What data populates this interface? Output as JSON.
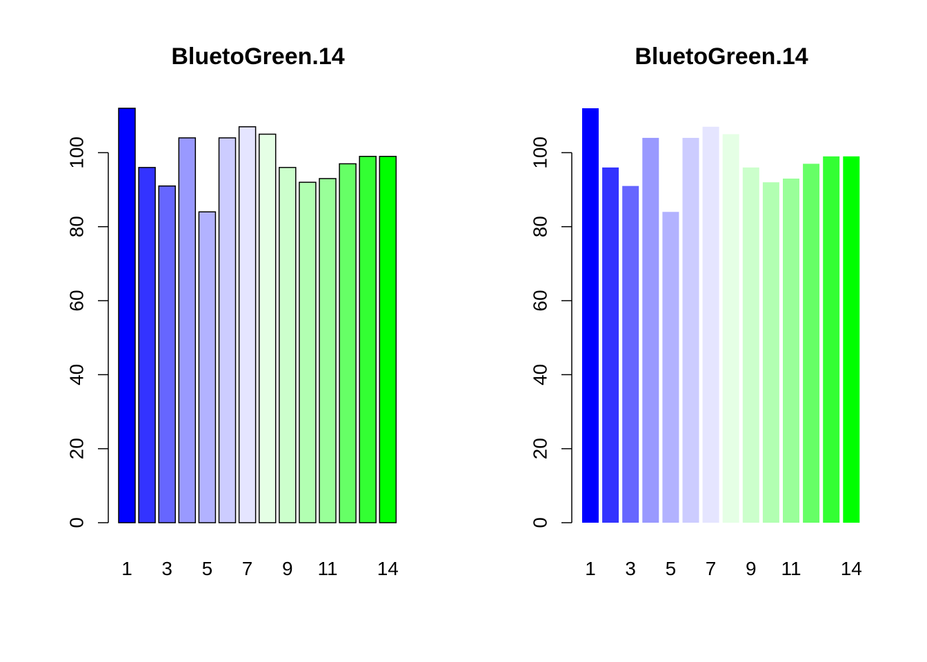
{
  "chart_data": [
    {
      "type": "bar",
      "title": "BluetoGreen.14",
      "xlabel": "",
      "ylabel": "",
      "categories": [
        "1",
        "2",
        "3",
        "4",
        "5",
        "6",
        "7",
        "8",
        "9",
        "10",
        "11",
        "12",
        "13",
        "14"
      ],
      "x_tick_labels": [
        "1",
        "3",
        "5",
        "7",
        "9",
        "11",
        "14"
      ],
      "x_tick_positions": [
        1,
        3,
        5,
        7,
        9,
        11,
        14
      ],
      "values": [
        112,
        96,
        91,
        104,
        84,
        104,
        107,
        105,
        96,
        92,
        93,
        97,
        99,
        99
      ],
      "colors": [
        "#0000FF",
        "#3333FF",
        "#6666FF",
        "#9999FF",
        "#B2B2FF",
        "#CCCCFF",
        "#E5E5FF",
        "#E5FFE5",
        "#CCFFCC",
        "#B2FFB2",
        "#99FF99",
        "#66FF66",
        "#33FF33",
        "#00FF00"
      ],
      "bar_border": true,
      "ylim": [
        0,
        112
      ],
      "y_ticks": [
        0,
        20,
        40,
        60,
        80,
        100
      ],
      "y_tick_labels": [
        "0",
        "20",
        "40",
        "60",
        "80",
        "100"
      ],
      "grid": false
    },
    {
      "type": "bar",
      "title": "BluetoGreen.14",
      "xlabel": "",
      "ylabel": "",
      "categories": [
        "1",
        "2",
        "3",
        "4",
        "5",
        "6",
        "7",
        "8",
        "9",
        "10",
        "11",
        "12",
        "13",
        "14"
      ],
      "x_tick_labels": [
        "1",
        "3",
        "5",
        "7",
        "9",
        "11",
        "14"
      ],
      "x_tick_positions": [
        1,
        3,
        5,
        7,
        9,
        11,
        14
      ],
      "values": [
        112,
        96,
        91,
        104,
        84,
        104,
        107,
        105,
        96,
        92,
        93,
        97,
        99,
        99
      ],
      "colors": [
        "#0000FF",
        "#3333FF",
        "#6666FF",
        "#9999FF",
        "#B2B2FF",
        "#CCCCFF",
        "#E5E5FF",
        "#E5FFE5",
        "#CCFFCC",
        "#B2FFB2",
        "#99FF99",
        "#66FF66",
        "#33FF33",
        "#00FF00"
      ],
      "bar_border": false,
      "ylim": [
        0,
        112
      ],
      "y_ticks": [
        0,
        20,
        40,
        60,
        80,
        100
      ],
      "y_tick_labels": [
        "0",
        "20",
        "40",
        "60",
        "80",
        "100"
      ],
      "grid": false
    }
  ]
}
